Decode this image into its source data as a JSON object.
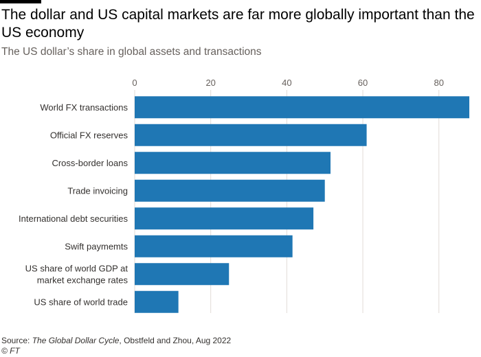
{
  "header": {
    "title": "The dollar and US capital markets are far more globally important than the US economy",
    "subtitle": "The US dollar’s share in global assets and transactions"
  },
  "footer": {
    "source_prefix": "Source: ",
    "source_title": "The Global Dollar Cycle",
    "source_rest": ", Obstfeld and Zhou, Aug 2022",
    "copyright": "© FT"
  },
  "colors": {
    "bar": "#1f77b4",
    "grid": "#e1dbd6",
    "text": "#33302e"
  },
  "chart_data": {
    "type": "bar",
    "orientation": "horizontal",
    "title": "The dollar and US capital markets are far more globally important than the US economy",
    "subtitle": "The US dollar’s share in global assets and transactions",
    "categories": [
      [
        "World FX transactions"
      ],
      [
        "Official FX reserves"
      ],
      [
        "Cross-border loans"
      ],
      [
        "Trade invoicing"
      ],
      [
        "International debt securities"
      ],
      [
        "Swift paymemts"
      ],
      [
        "US share of world GDP at",
        "market exchange rates"
      ],
      [
        "US share of world trade"
      ]
    ],
    "values": [
      88,
      61,
      51.5,
      50,
      47,
      41.5,
      24.8,
      11.5
    ],
    "xlim": [
      0,
      88
    ],
    "xticks": [
      0,
      20,
      40,
      60,
      80
    ],
    "grid": true,
    "xlabel": "",
    "ylabel": ""
  }
}
